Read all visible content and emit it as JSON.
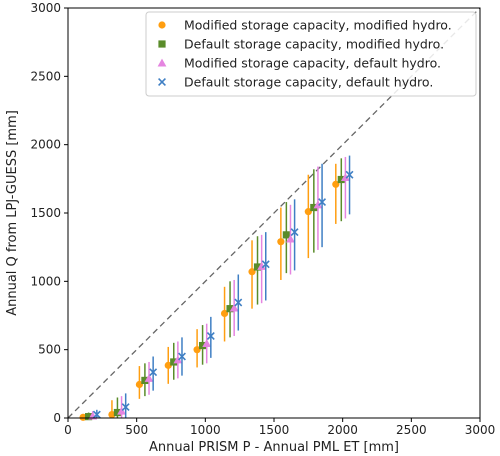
{
  "chart_data": {
    "type": "scatter",
    "xlabel": "Annual PRISM P - Annual PML ET [mm]",
    "ylabel": "Annual Q from LPJ-GUESS [mm]",
    "xlim": [
      0,
      3000
    ],
    "ylim": [
      0,
      3000
    ],
    "x_ticks": [
      0,
      500,
      1000,
      1500,
      2000,
      2500,
      3000
    ],
    "y_ticks": [
      0,
      500,
      1000,
      1500,
      2000,
      2500,
      3000
    ],
    "reference_line": "1:1",
    "legend_position": "top-right",
    "grid": false,
    "series": [
      {
        "name": "Modified storage capacity, modified hydro.",
        "marker": "circle",
        "color": "#ff9e10",
        "points": [
          {
            "x": 110,
            "y": 5,
            "lo": 0,
            "hi": 30
          },
          {
            "x": 320,
            "y": 25,
            "lo": 0,
            "hi": 130
          },
          {
            "x": 520,
            "y": 245,
            "lo": 140,
            "hi": 380
          },
          {
            "x": 730,
            "y": 385,
            "lo": 250,
            "hi": 520
          },
          {
            "x": 940,
            "y": 500,
            "lo": 370,
            "hi": 650
          },
          {
            "x": 1140,
            "y": 765,
            "lo": 560,
            "hi": 960
          },
          {
            "x": 1340,
            "y": 1070,
            "lo": 800,
            "hi": 1300
          },
          {
            "x": 1550,
            "y": 1290,
            "lo": 1010,
            "hi": 1540
          },
          {
            "x": 1750,
            "y": 1510,
            "lo": 1170,
            "hi": 1780
          },
          {
            "x": 1950,
            "y": 1710,
            "lo": 1420,
            "hi": 1860
          }
        ]
      },
      {
        "name": "Default storage capacity, modified hydro.",
        "marker": "square",
        "color": "#5a8c2a",
        "points": [
          {
            "x": 150,
            "y": 10,
            "lo": 0,
            "hi": 40
          },
          {
            "x": 360,
            "y": 40,
            "lo": 0,
            "hi": 150
          },
          {
            "x": 560,
            "y": 275,
            "lo": 160,
            "hi": 400
          },
          {
            "x": 770,
            "y": 410,
            "lo": 280,
            "hi": 550
          },
          {
            "x": 980,
            "y": 530,
            "lo": 390,
            "hi": 680
          },
          {
            "x": 1180,
            "y": 800,
            "lo": 590,
            "hi": 1000
          },
          {
            "x": 1380,
            "y": 1105,
            "lo": 830,
            "hi": 1330
          },
          {
            "x": 1590,
            "y": 1340,
            "lo": 1060,
            "hi": 1580
          },
          {
            "x": 1790,
            "y": 1540,
            "lo": 1210,
            "hi": 1820
          },
          {
            "x": 1990,
            "y": 1745,
            "lo": 1440,
            "hi": 1900
          }
        ]
      },
      {
        "name": "Modified storage capacity, default hydro.",
        "marker": "triangle",
        "color": "#e585e0",
        "points": [
          {
            "x": 180,
            "y": 15,
            "lo": 0,
            "hi": 50
          },
          {
            "x": 390,
            "y": 50,
            "lo": 0,
            "hi": 160
          },
          {
            "x": 590,
            "y": 290,
            "lo": 170,
            "hi": 410
          },
          {
            "x": 800,
            "y": 425,
            "lo": 290,
            "hi": 560
          },
          {
            "x": 1010,
            "y": 545,
            "lo": 400,
            "hi": 690
          },
          {
            "x": 1210,
            "y": 805,
            "lo": 600,
            "hi": 1010
          },
          {
            "x": 1410,
            "y": 1110,
            "lo": 840,
            "hi": 1340
          },
          {
            "x": 1620,
            "y": 1310,
            "lo": 1050,
            "hi": 1560
          },
          {
            "x": 1820,
            "y": 1560,
            "lo": 1230,
            "hi": 1840
          },
          {
            "x": 2020,
            "y": 1760,
            "lo": 1460,
            "hi": 1910
          }
        ]
      },
      {
        "name": "Default storage capacity, default hydro.",
        "marker": "x",
        "color": "#3f7fc4",
        "points": [
          {
            "x": 210,
            "y": 25,
            "lo": 0,
            "hi": 60
          },
          {
            "x": 420,
            "y": 80,
            "lo": 0,
            "hi": 180
          },
          {
            "x": 620,
            "y": 335,
            "lo": 200,
            "hi": 450
          },
          {
            "x": 830,
            "y": 450,
            "lo": 310,
            "hi": 590
          },
          {
            "x": 1040,
            "y": 600,
            "lo": 440,
            "hi": 740
          },
          {
            "x": 1240,
            "y": 845,
            "lo": 640,
            "hi": 1050
          },
          {
            "x": 1440,
            "y": 1125,
            "lo": 860,
            "hi": 1360
          },
          {
            "x": 1650,
            "y": 1360,
            "lo": 1080,
            "hi": 1600
          },
          {
            "x": 1850,
            "y": 1580,
            "lo": 1250,
            "hi": 1860
          },
          {
            "x": 2050,
            "y": 1780,
            "lo": 1490,
            "hi": 1920
          }
        ]
      }
    ]
  }
}
